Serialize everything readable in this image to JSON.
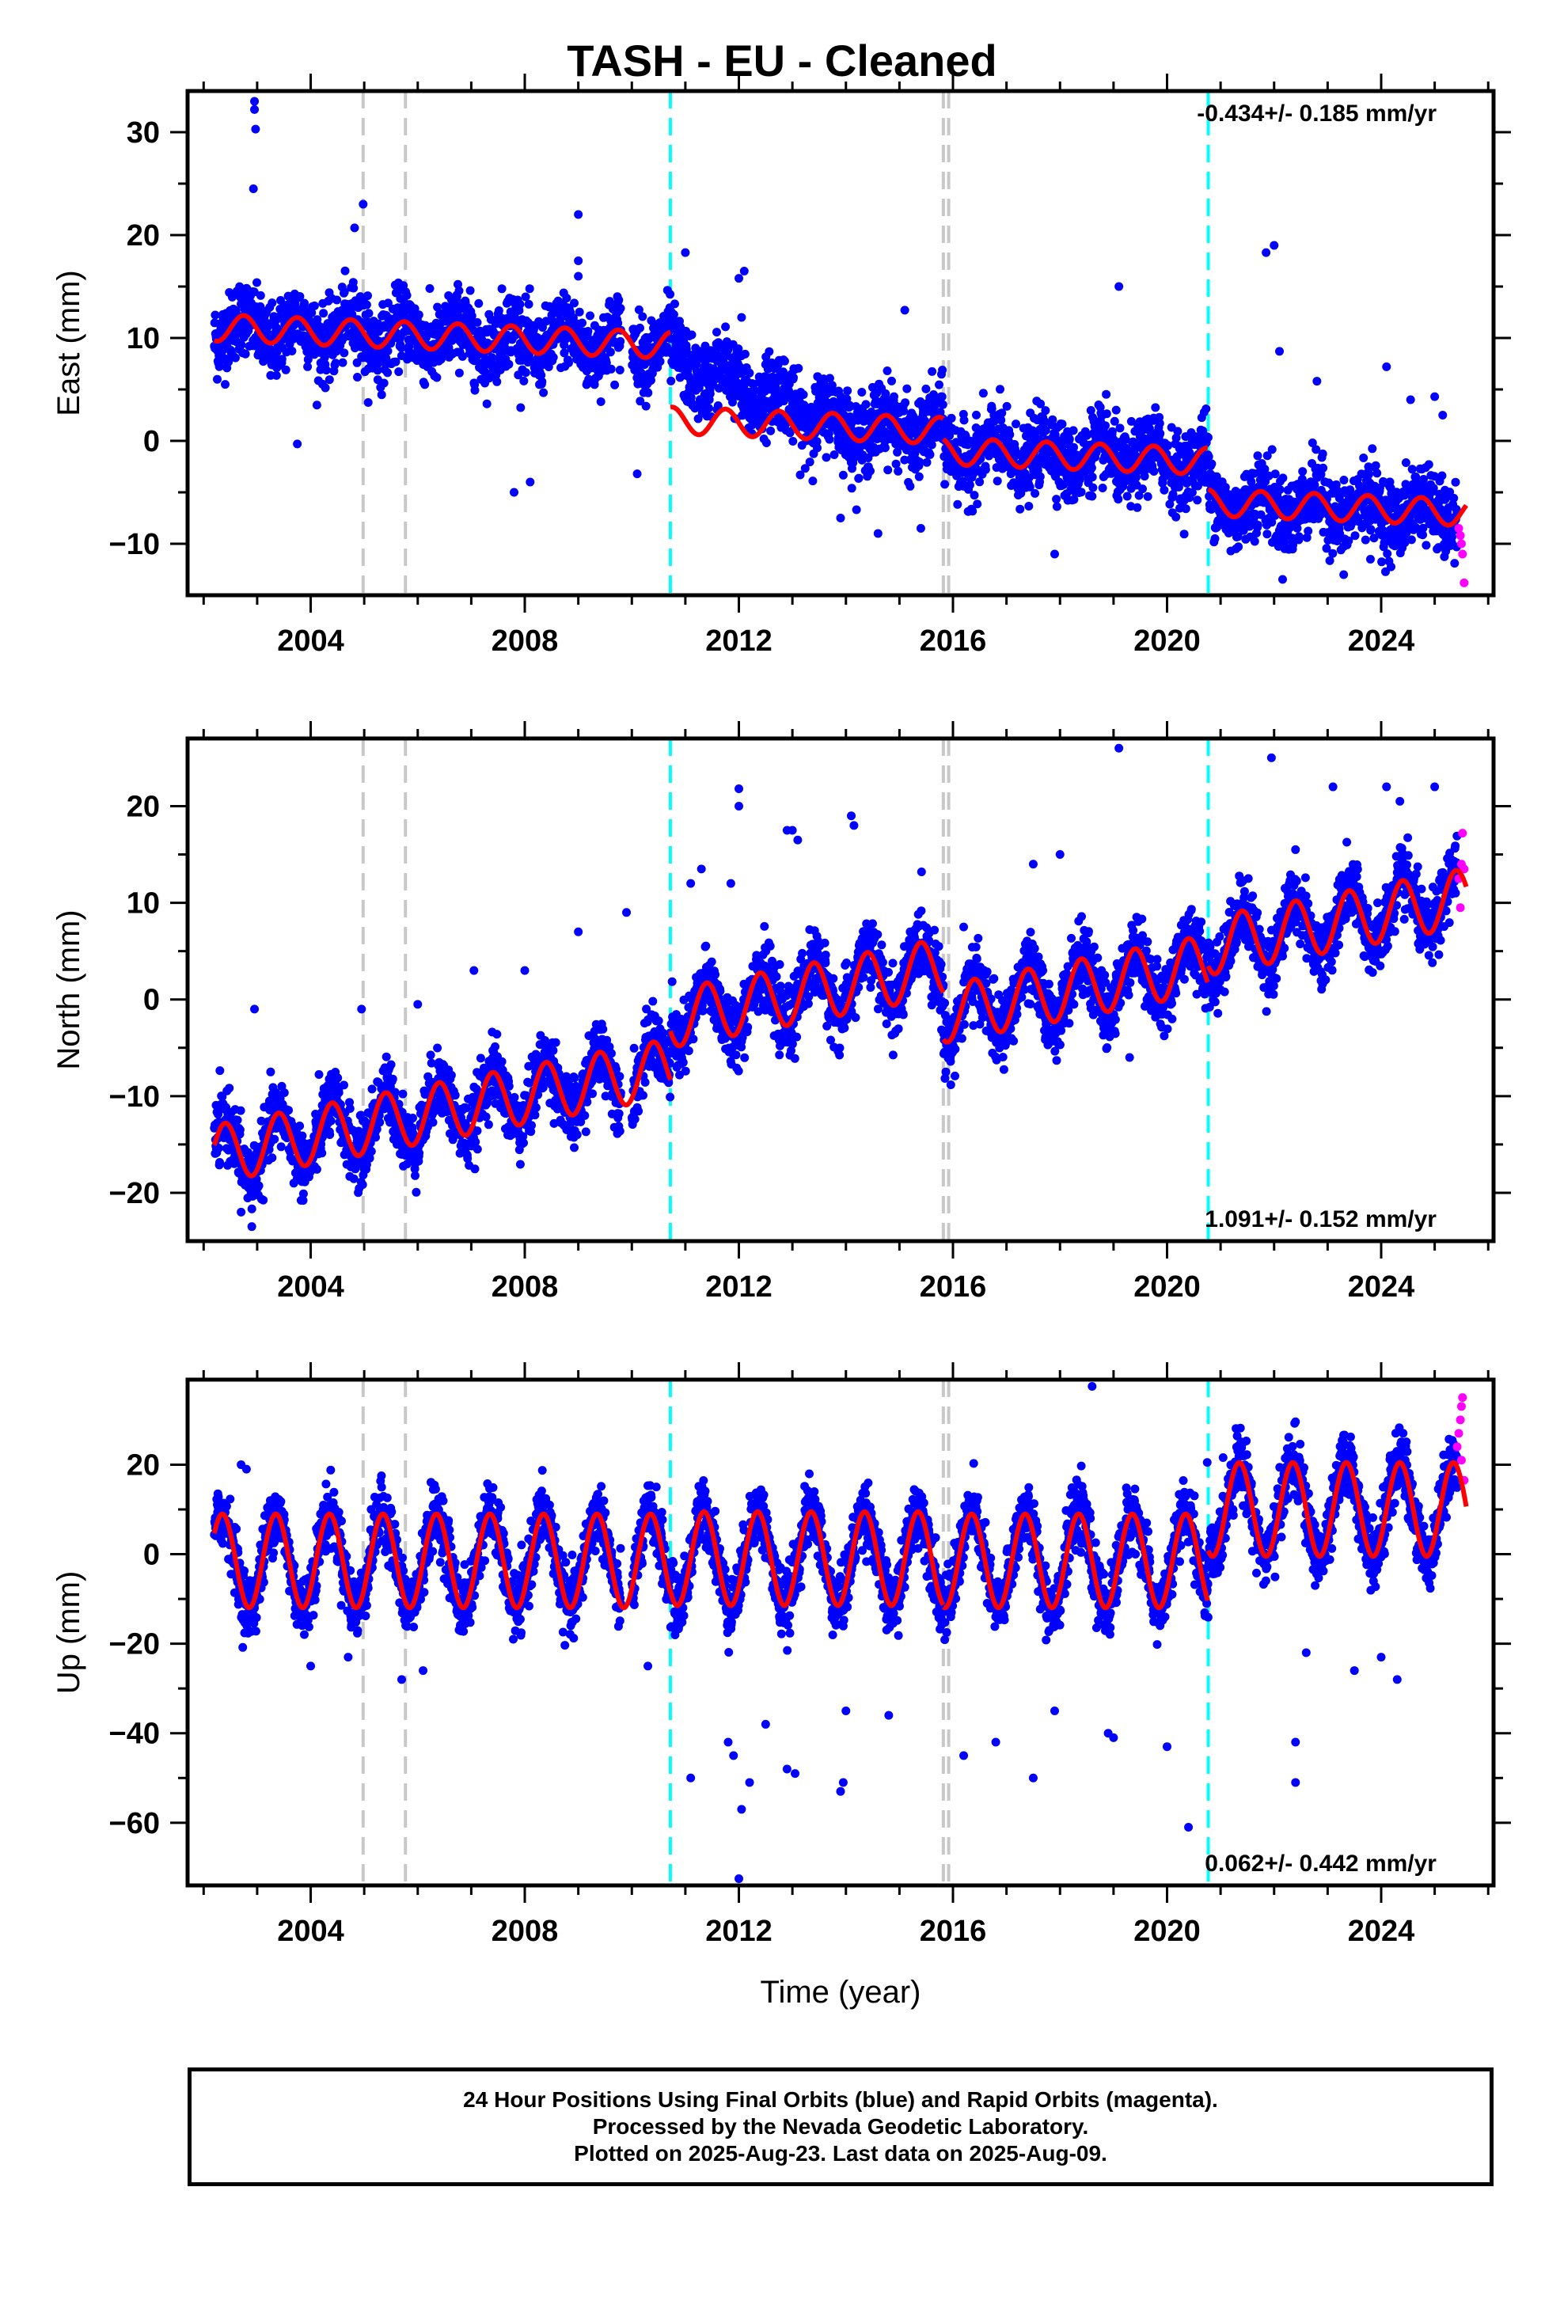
{
  "title": "TASH  - EU - Cleaned",
  "footer": {
    "line1": "24 Hour Positions Using Final Orbits (blue) and Rapid Orbits (magenta).",
    "line2": "Processed by the Nevada Geodetic Laboratory.",
    "line3": "Plotted on 2025-Aug-23. Last data on 2025-Aug-09."
  },
  "colors": {
    "final_orbits": "#0000ff",
    "rapid_orbits": "#ff00ff",
    "model": "#ff0000",
    "antenna_change_lines": "#c8c8c8",
    "earthquake_lines": "#00ffff"
  },
  "chart_data": [
    {
      "type": "scatter",
      "ylabel": "East (mm)",
      "xlabel": "",
      "xlim": [
        2001.7,
        2026.1
      ],
      "ylim": [
        -15,
        34
      ],
      "x_ticks": [
        2004,
        2008,
        2012,
        2016,
        2020,
        2024
      ],
      "y_ticks": [
        -10,
        0,
        10,
        20,
        30
      ],
      "rate_text": "-0.434+/- 0.185 mm/yr",
      "rate_position": "top-right",
      "grid": false,
      "vertical_lines": [
        {
          "x": 2004.98,
          "color": "gray"
        },
        {
          "x": 2005.77,
          "color": "gray"
        },
        {
          "x": 2010.72,
          "color": "cyan"
        },
        {
          "x": 2015.82,
          "color": "gray"
        },
        {
          "x": 2015.92,
          "color": "gray"
        },
        {
          "x": 2020.77,
          "color": "cyan"
        }
      ],
      "model": {
        "segments": [
          [
            2002.2,
            2010.72
          ],
          [
            2010.72,
            2015.82
          ],
          [
            2015.82,
            2020.77
          ],
          [
            2020.77,
            2025.6
          ]
        ],
        "offsets": [
          11.0,
          2.0,
          -1.0,
          -6.0
        ],
        "trend_mm_per_yr": -0.2,
        "annual_amplitude": 1.3,
        "annual_phase_year": 2002.75
      },
      "scatter_level_shift": {
        "x": [
          2010.72,
          2013.7
        ],
        "delta": 6.0
      },
      "point_spread": 1.8,
      "outliers": [
        [
          2002.95,
          33.0
        ],
        [
          2002.95,
          32.2
        ],
        [
          2002.97,
          30.3
        ],
        [
          2002.93,
          24.5
        ],
        [
          2004.82,
          20.7
        ],
        [
          2004.98,
          23.0
        ],
        [
          2009.0,
          22.0
        ],
        [
          2009.0,
          17.5
        ],
        [
          2009.0,
          16.0
        ],
        [
          2003.75,
          -0.3
        ],
        [
          2007.8,
          -5.0
        ],
        [
          2008.1,
          -4.0
        ],
        [
          2010.1,
          -3.2
        ],
        [
          2011.0,
          18.3
        ],
        [
          2012.1,
          16.5
        ],
        [
          2012.0,
          15.8
        ],
        [
          2012.05,
          12.0
        ],
        [
          2015.1,
          12.7
        ],
        [
          2017.9,
          -11.0
        ],
        [
          2019.1,
          15.0
        ],
        [
          2021.85,
          18.3
        ],
        [
          2022.0,
          19.0
        ],
        [
          2022.1,
          8.7
        ],
        [
          2022.8,
          5.8
        ],
        [
          2023.3,
          -13.0
        ],
        [
          2023.8,
          -11.5
        ],
        [
          2024.1,
          7.2
        ],
        [
          2024.55,
          4.0
        ],
        [
          2025.0,
          4.3
        ],
        [
          2025.15,
          2.5
        ],
        [
          2014.6,
          -9.0
        ],
        [
          2015.4,
          -8.5
        ],
        [
          2013.9,
          -7.5
        ]
      ],
      "rapid_points": [
        [
          2025.45,
          -8.5
        ],
        [
          2025.5,
          -10.0
        ],
        [
          2025.52,
          -11.0
        ],
        [
          2025.55,
          -13.8
        ],
        [
          2025.48,
          -9.2
        ]
      ]
    },
    {
      "type": "scatter",
      "ylabel": "North (mm)",
      "xlabel": "",
      "xlim": [
        2001.7,
        2026.1
      ],
      "ylim": [
        -25,
        27
      ],
      "x_ticks": [
        2004,
        2008,
        2012,
        2016,
        2020,
        2024
      ],
      "y_ticks": [
        -20,
        -10,
        0,
        10,
        20
      ],
      "rate_text": "1.091+/- 0.152 mm/yr",
      "rate_position": "bottom-right",
      "grid": false,
      "vertical_lines": [
        {
          "x": 2004.98,
          "color": "gray"
        },
        {
          "x": 2005.77,
          "color": "gray"
        },
        {
          "x": 2010.72,
          "color": "cyan"
        },
        {
          "x": 2015.82,
          "color": "gray"
        },
        {
          "x": 2015.92,
          "color": "gray"
        },
        {
          "x": 2020.77,
          "color": "cyan"
        }
      ],
      "model": {
        "segments": [
          [
            2002.2,
            2010.72
          ],
          [
            2010.72,
            2015.82
          ],
          [
            2015.82,
            2020.77
          ],
          [
            2020.77,
            2025.6
          ]
        ],
        "offsets": [
          -16.0,
          -2.0,
          -1.5,
          5.5
        ],
        "trend_mm_per_yr": 1.05,
        "annual_amplitude": 3.0,
        "annual_phase_year": 2002.4
      },
      "point_spread": 1.7,
      "outliers": [
        [
          2002.95,
          -1.0
        ],
        [
          2002.9,
          -23.5
        ],
        [
          2002.7,
          -22.0
        ],
        [
          2004.95,
          -1.0
        ],
        [
          2006.0,
          -0.5
        ],
        [
          2007.05,
          3.0
        ],
        [
          2008.0,
          3.0
        ],
        [
          2009.0,
          7.0
        ],
        [
          2009.9,
          9.0
        ],
        [
          2011.1,
          12.0
        ],
        [
          2011.3,
          13.5
        ],
        [
          2011.85,
          12.0
        ],
        [
          2012.0,
          21.8
        ],
        [
          2012.0,
          20.0
        ],
        [
          2012.9,
          17.5
        ],
        [
          2013.0,
          17.5
        ],
        [
          2013.1,
          16.5
        ],
        [
          2014.1,
          19.0
        ],
        [
          2014.15,
          18.0
        ],
        [
          2017.5,
          14.0
        ],
        [
          2018.0,
          15.0
        ],
        [
          2019.1,
          26.0
        ],
        [
          2019.3,
          -6.0
        ],
        [
          2021.95,
          25.0
        ],
        [
          2022.4,
          15.5
        ],
        [
          2023.1,
          22.0
        ],
        [
          2024.1,
          22.0
        ],
        [
          2025.0,
          22.0
        ],
        [
          2024.35,
          20.5
        ],
        [
          2015.2,
          7.0
        ],
        [
          2016.2,
          7.5
        ]
      ],
      "rapid_points": [
        [
          2025.45,
          12.5
        ],
        [
          2025.5,
          14.0
        ],
        [
          2025.52,
          17.2
        ],
        [
          2025.48,
          9.5
        ],
        [
          2025.55,
          13.5
        ]
      ]
    },
    {
      "type": "scatter",
      "ylabel": "Up (mm)",
      "xlabel": "Time (year)",
      "xlim": [
        2001.7,
        2026.1
      ],
      "ylim": [
        -74,
        39
      ],
      "x_ticks": [
        2004,
        2008,
        2012,
        2016,
        2020,
        2024
      ],
      "y_ticks": [
        -60,
        -40,
        -20,
        0,
        20
      ],
      "rate_text": "0.062+/- 0.442 mm/yr",
      "rate_position": "bottom-right",
      "grid": false,
      "vertical_lines": [
        {
          "x": 2004.98,
          "color": "gray"
        },
        {
          "x": 2005.77,
          "color": "gray"
        },
        {
          "x": 2010.72,
          "color": "cyan"
        },
        {
          "x": 2015.82,
          "color": "gray"
        },
        {
          "x": 2015.92,
          "color": "gray"
        },
        {
          "x": 2020.77,
          "color": "cyan"
        }
      ],
      "model": {
        "segments": [
          [
            2002.2,
            2010.72
          ],
          [
            2010.72,
            2015.82
          ],
          [
            2015.82,
            2020.77
          ],
          [
            2020.77,
            2025.6
          ]
        ],
        "offsets": [
          -1.5,
          -1.0,
          -1.5,
          10.0
        ],
        "trend_mm_per_yr": 0.0,
        "annual_amplitude": 10.5,
        "annual_phase_year": 2002.35
      },
      "point_spread": 3.5,
      "outliers": [
        [
          2002.7,
          20.0
        ],
        [
          2002.8,
          19.0
        ],
        [
          2004.0,
          -25.0
        ],
        [
          2004.7,
          -23.0
        ],
        [
          2005.7,
          -28.0
        ],
        [
          2006.1,
          -26.0
        ],
        [
          2010.3,
          -25.0
        ],
        [
          2011.1,
          -50.0
        ],
        [
          2011.8,
          -42.0
        ],
        [
          2011.9,
          -45.0
        ],
        [
          2012.0,
          -72.5
        ],
        [
          2012.05,
          -57.0
        ],
        [
          2012.2,
          -51.0
        ],
        [
          2012.5,
          -38.0
        ],
        [
          2012.9,
          -48.0
        ],
        [
          2013.05,
          -49.0
        ],
        [
          2013.9,
          -53.0
        ],
        [
          2013.95,
          -51.0
        ],
        [
          2014.8,
          -36.0
        ],
        [
          2016.2,
          -45.0
        ],
        [
          2016.8,
          -42.0
        ],
        [
          2017.5,
          -50.0
        ],
        [
          2017.9,
          -35.0
        ],
        [
          2018.6,
          37.5
        ],
        [
          2018.9,
          -40.0
        ],
        [
          2019.0,
          -41.0
        ],
        [
          2020.0,
          -43.0
        ],
        [
          2020.4,
          -61.0
        ],
        [
          2020.75,
          20.5
        ],
        [
          2022.4,
          -51.0
        ],
        [
          2022.4,
          -42.0
        ],
        [
          2022.6,
          -22.0
        ],
        [
          2023.5,
          -26.0
        ],
        [
          2024.0,
          -23.0
        ],
        [
          2024.3,
          -28.0
        ],
        [
          2014.0,
          -35.0
        ]
      ],
      "rapid_points": [
        [
          2025.42,
          24.0
        ],
        [
          2025.45,
          27.0
        ],
        [
          2025.48,
          30.0
        ],
        [
          2025.5,
          33.0
        ],
        [
          2025.52,
          35.0
        ],
        [
          2025.55,
          16.5
        ],
        [
          2025.5,
          21.0
        ]
      ]
    }
  ]
}
